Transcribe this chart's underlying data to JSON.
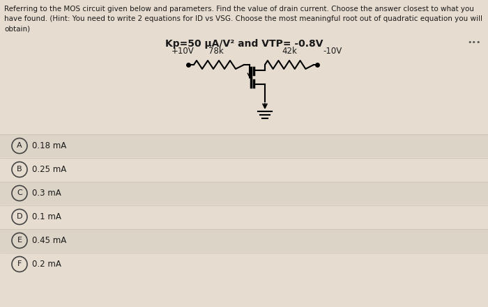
{
  "title_line1": "Referring to the MOS circuit given below and parameters. Find the value of drain current. Choose the answer closest to what you",
  "title_line2": "have found. (Hint: You need to write 2 equations for ID vs VSG. Choose the most meaningful root out of quadratic equation you will",
  "title_line3": "obtain)",
  "circuit_title": "Kp=50 μA/V² and VTP= -0.8V",
  "v_left": "+10V",
  "r_left": "78k",
  "r_right": "42k",
  "v_right": "-10V",
  "options": [
    {
      "label": "A",
      "value": "0.18 mA"
    },
    {
      "label": "B",
      "value": "0.25 mA"
    },
    {
      "label": "C",
      "value": "0.3 mA"
    },
    {
      "label": "D",
      "value": "0.1 mA"
    },
    {
      "label": "E",
      "value": "0.45 mA"
    },
    {
      "label": "F",
      "value": "0.2 mA"
    }
  ],
  "bg_color": "#e6ddd0",
  "text_color": "#1a1a1a",
  "option_row_colors": [
    "#dcd4c6",
    "#e6ddd0",
    "#dcd4c6",
    "#e6ddd0",
    "#dcd4c6",
    "#e6ddd0"
  ],
  "circuit_bg": "#e6ddd0"
}
